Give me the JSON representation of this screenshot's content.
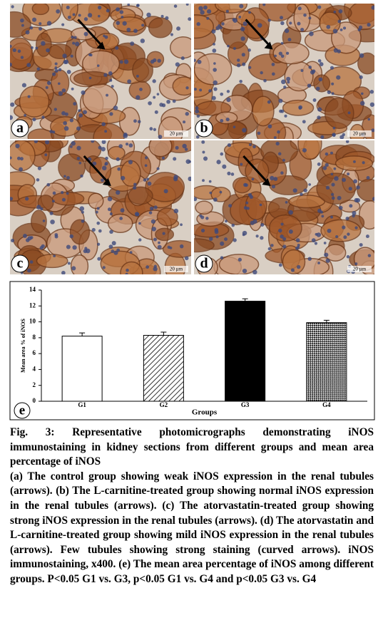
{
  "panels": [
    {
      "label": "a",
      "scale": "20 µm"
    },
    {
      "label": "b",
      "scale": "20 µm"
    },
    {
      "label": "c",
      "scale": "20 µm"
    },
    {
      "label": "d",
      "scale": "20 µm"
    }
  ],
  "chart_data": {
    "type": "bar",
    "panel_label": "e",
    "y_label": "Mean area % of iNOS",
    "x_label": "Groups",
    "categories": [
      "G1",
      "G2",
      "G3",
      "G4"
    ],
    "values": [
      8.2,
      8.3,
      12.6,
      9.9
    ],
    "errors": [
      0.4,
      0.4,
      0.3,
      0.3
    ],
    "fills": [
      "white",
      "hatched",
      "black",
      "checkered"
    ],
    "ylim": [
      0,
      14
    ],
    "yticks": [
      0,
      2,
      4,
      6,
      8,
      10,
      12,
      14
    ]
  },
  "caption": {
    "title": "Fig. 3: Representative photomicrographs demonstrating iNOS immunostaining in kidney sections from different groups and mean area percentage of iNOS",
    "body": "(a) The control group showing weak iNOS expression in the renal tubules (arrows). (b) The L-carnitine-treated group showing normal iNOS expression in the renal tubules (arrows). (c) The atorvastatin-treated group showing strong iNOS expression in the renal tubules (arrows). (d) The atorvastatin and L-carnitine-treated group showing mild iNOS expression in the renal tubules (arrows). Few tubules showing strong staining (curved arrows). iNOS immunostaining, x400. (e) The mean area percentage of iNOS among different groups. P<0.05 G1 vs. G3, p<0.05 G1 vs. G4 and p<0.05 G3 vs. G4"
  }
}
